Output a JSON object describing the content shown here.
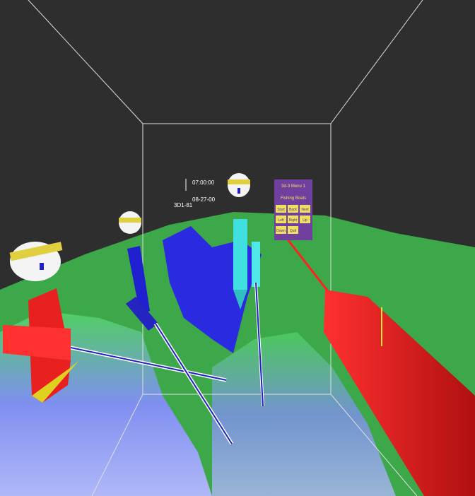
{
  "hud": {
    "time": "07:00:00",
    "date": "08-27-00",
    "station": "3D1-81"
  },
  "panel": {
    "title": "3d-3 Menu 1",
    "subtitle": "Fishing Boats",
    "buttons": [
      "Start",
      "Back",
      "Next",
      "Left",
      "Right",
      "Up",
      "Down",
      "Quit"
    ]
  }
}
